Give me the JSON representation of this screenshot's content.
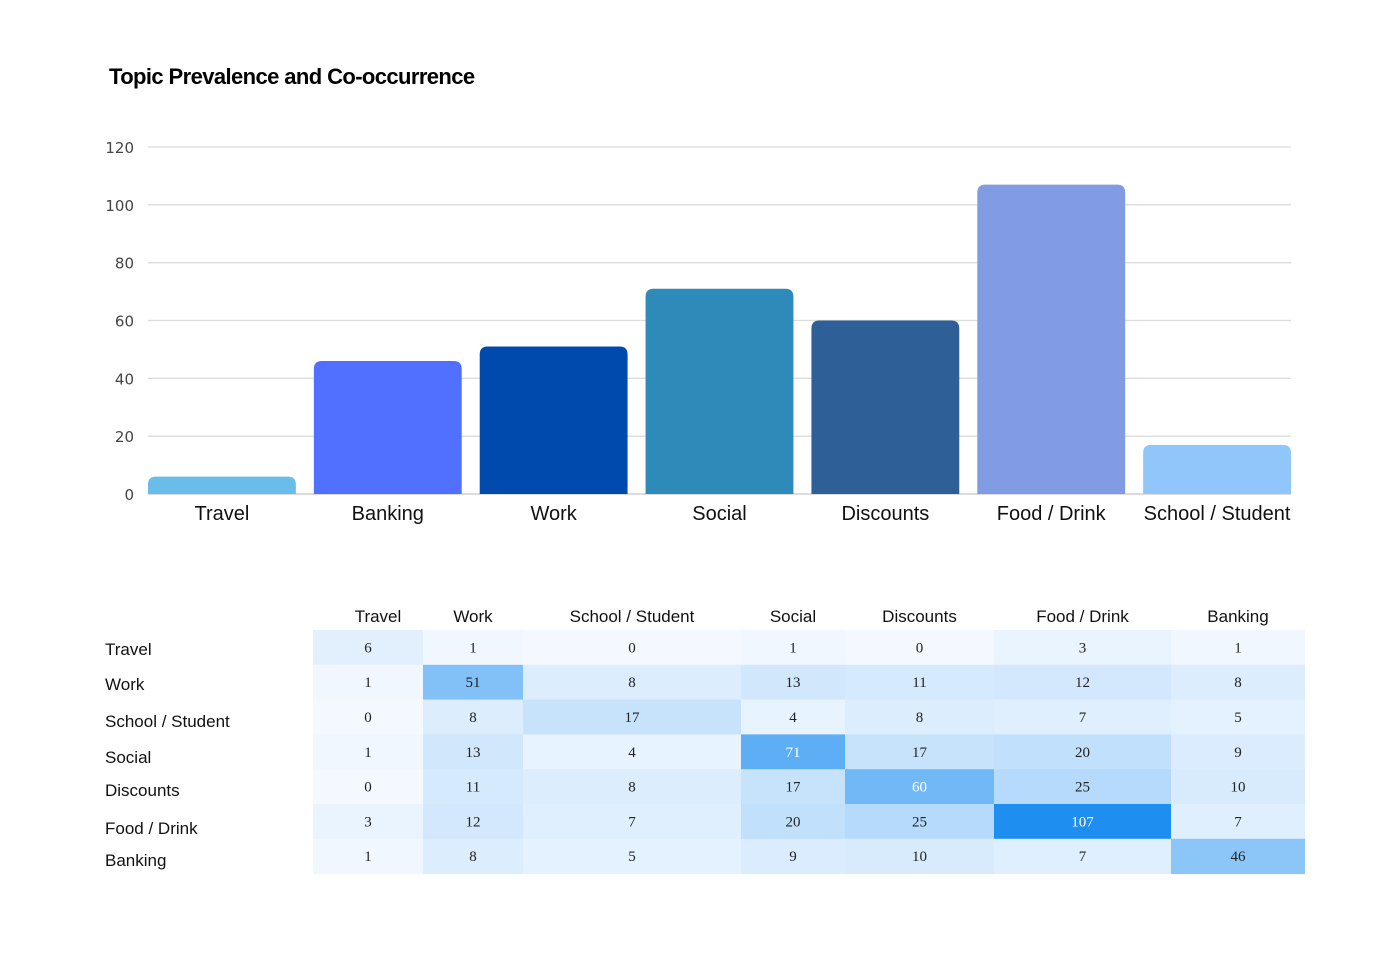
{
  "page": {
    "title": "Topic Prevalence and Co-occurrence"
  },
  "chart_data": [
    {
      "type": "bar",
      "title": "Topic Prevalence and Co-occurrence",
      "xlabel": "",
      "ylabel": "",
      "categories": [
        "Travel",
        "Banking",
        "Work",
        "Social",
        "Discounts",
        "Food / Drink",
        "School / Student"
      ],
      "values": [
        6,
        46,
        51,
        71,
        60,
        107,
        17
      ],
      "colors": [
        "#6ABDE8",
        "#5270FF",
        "#004AAD",
        "#2E8AB8",
        "#2E5F97",
        "#829CE4",
        "#91C6FB"
      ],
      "ylim": [
        0,
        120
      ],
      "yticks": [
        0,
        20,
        40,
        60,
        80,
        100,
        120
      ],
      "grid": true,
      "legend": "none"
    },
    {
      "type": "heatmap",
      "title": "",
      "columns": [
        "Travel",
        "Work",
        "School / Student",
        "Social",
        "Discounts",
        "Food / Drink",
        "Banking"
      ],
      "rows": [
        "Travel",
        "Work",
        "School / Student",
        "Social",
        "Discounts",
        "Food / Drink",
        "Banking"
      ],
      "values": [
        [
          6,
          1,
          0,
          1,
          0,
          3,
          1
        ],
        [
          1,
          51,
          8,
          13,
          11,
          12,
          8
        ],
        [
          0,
          8,
          17,
          4,
          8,
          7,
          5
        ],
        [
          1,
          13,
          4,
          71,
          17,
          20,
          9
        ],
        [
          0,
          11,
          8,
          17,
          60,
          25,
          10
        ],
        [
          3,
          12,
          7,
          20,
          25,
          107,
          7
        ],
        [
          1,
          8,
          5,
          9,
          10,
          7,
          46
        ]
      ],
      "colormap": {
        "low": "#FFFFFF",
        "high": "#1E8FF0"
      },
      "value_range": [
        0,
        107
      ]
    }
  ]
}
